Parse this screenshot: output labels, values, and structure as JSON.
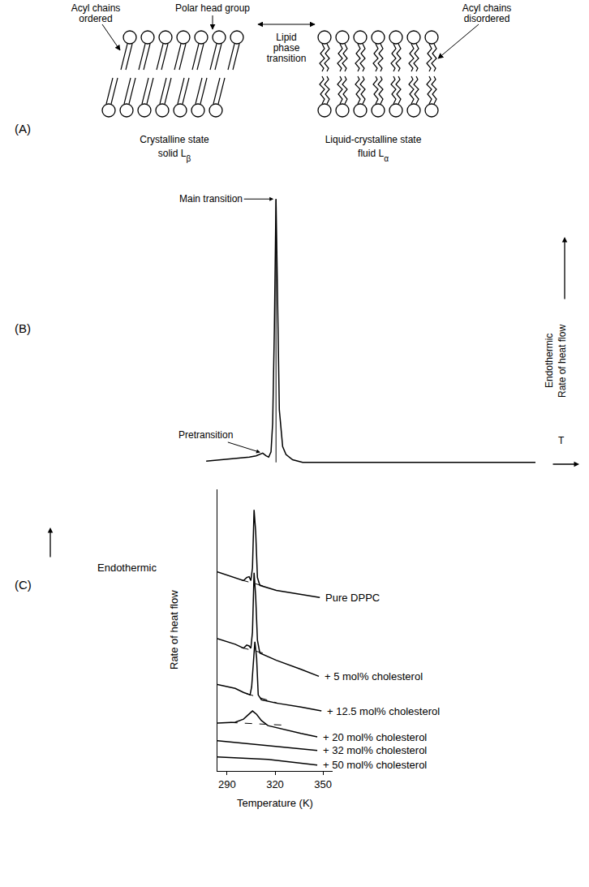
{
  "diagram": {
    "panel": "(A)",
    "labels": {
      "ordered": [
        "Acyl chains",
        "ordered"
      ],
      "head": [
        "Polar head group"
      ],
      "transition": [
        "Lipid",
        "phase",
        "transition"
      ],
      "disordered": [
        "Acyl chains",
        "disordered"
      ]
    },
    "states": [
      {
        "lines": [
          "Crystalline state",
          "solid"
        ],
        "symbol": "L",
        "subscript": "β"
      },
      {
        "lines": [
          "Liquid-crystalline state",
          "fluid"
        ],
        "symbol": "L",
        "subscript": "α"
      }
    ]
  },
  "chart_data": [
    {
      "panel": "(B)",
      "type": "line",
      "color": "#000000",
      "x": [
        1,
        5,
        10,
        14,
        16,
        17,
        18,
        19,
        19.8,
        20.5,
        21,
        21.5,
        22,
        22.5,
        23,
        24,
        25,
        27,
        30,
        40,
        60,
        80,
        100
      ],
      "values": [
        0.5,
        1,
        1.5,
        2,
        2.5,
        3,
        3.5,
        2.5,
        2,
        4,
        15,
        50,
        100,
        60,
        20,
        6,
        3,
        1,
        0,
        0,
        0,
        0,
        0
      ],
      "xlim": [
        0,
        100
      ],
      "ylim": [
        -5,
        105
      ],
      "tick_labels": false,
      "annotations": [
        {
          "text": "Main transition",
          "x": 22,
          "y": 100
        },
        {
          "text": "Pretransition",
          "x": 18,
          "y": 3.5
        }
      ],
      "x_label": "T",
      "y_label": [
        "Endothermic",
        "Rate of heat flow"
      ]
    },
    {
      "panel": "(C)",
      "type": "line",
      "color": "#000000",
      "x_label": "Temperature (K)",
      "y_label": "Rate of heat flow",
      "y_note": "Endothermic",
      "xlim": [
        284,
        356
      ],
      "xticks": [
        290,
        320,
        350
      ],
      "ylim": [
        5,
        105
      ],
      "tick_labels": "x",
      "series": [
        {
          "name": "Pure DPPC",
          "x": [
            284,
            295.1,
            300.3,
            302.3,
            303.8,
            304.9,
            305.9,
            306.9,
            307.9,
            309,
            310.5,
            320.8,
            336.2,
            348
          ],
          "values": [
            75.7,
            73.7,
            72.6,
            73.7,
            74,
            72.6,
            77.1,
            97.7,
            90,
            73.7,
            70.9,
            69.1,
            67.7,
            66.6
          ],
          "baseline_x": [
            299,
            316
          ],
          "baseline": [
            72.8,
            70.2
          ]
        },
        {
          "name": "+ 5 mol% cholesterol",
          "x": [
            284,
            295.1,
            300.3,
            302.3,
            303.8,
            304.9,
            305.9,
            306.9,
            307.9,
            309,
            310.5,
            320.8,
            336.2,
            347.4
          ],
          "values": [
            52,
            50,
            48.6,
            49.7,
            49.4,
            48.6,
            54.3,
            75.4,
            67.1,
            51.4,
            46.9,
            44.3,
            41.1,
            38.6
          ],
          "baseline_x": [
            299,
            316
          ],
          "baseline": [
            48.8,
            46.4
          ]
        },
        {
          "name": "+ 12.5 mol% cholesterol",
          "x": [
            284,
            295.1,
            300.3,
            304.4,
            305.4,
            306.4,
            307.4,
            308.5,
            309.5,
            311.5,
            320.8,
            336.2,
            349
          ],
          "values": [
            35.7,
            34.3,
            32.9,
            32,
            34.9,
            42.9,
            50.9,
            45.1,
            32,
            30.3,
            29.1,
            27.7,
            26.3
          ],
          "baseline_x": [
            302,
            322
          ],
          "baseline": [
            32.5,
            29
          ]
        },
        {
          "name": "+ 20 mol% cholesterol",
          "x": [
            284,
            295.1,
            300.3,
            303.3,
            305.9,
            308.5,
            311.5,
            315.6,
            323.3,
            336.2,
            346.4
          ],
          "values": [
            22,
            22.3,
            23.4,
            25.1,
            26.3,
            25.1,
            22.9,
            21.1,
            20,
            18.3,
            17.1
          ],
          "baseline_x": [
            292,
            328
          ],
          "baseline": [
            22.2,
            21.2
          ]
        },
        {
          "name": "+ 32 mol% cholesterol",
          "x": [
            284,
            310.5,
            346.4
          ],
          "values": [
            15.7,
            14.3,
            12.3
          ]
        },
        {
          "name": "+ 50 mol% cholesterol",
          "x": [
            284,
            315.6,
            346.4
          ],
          "values": [
            10,
            9.1,
            7.1
          ]
        }
      ]
    }
  ]
}
